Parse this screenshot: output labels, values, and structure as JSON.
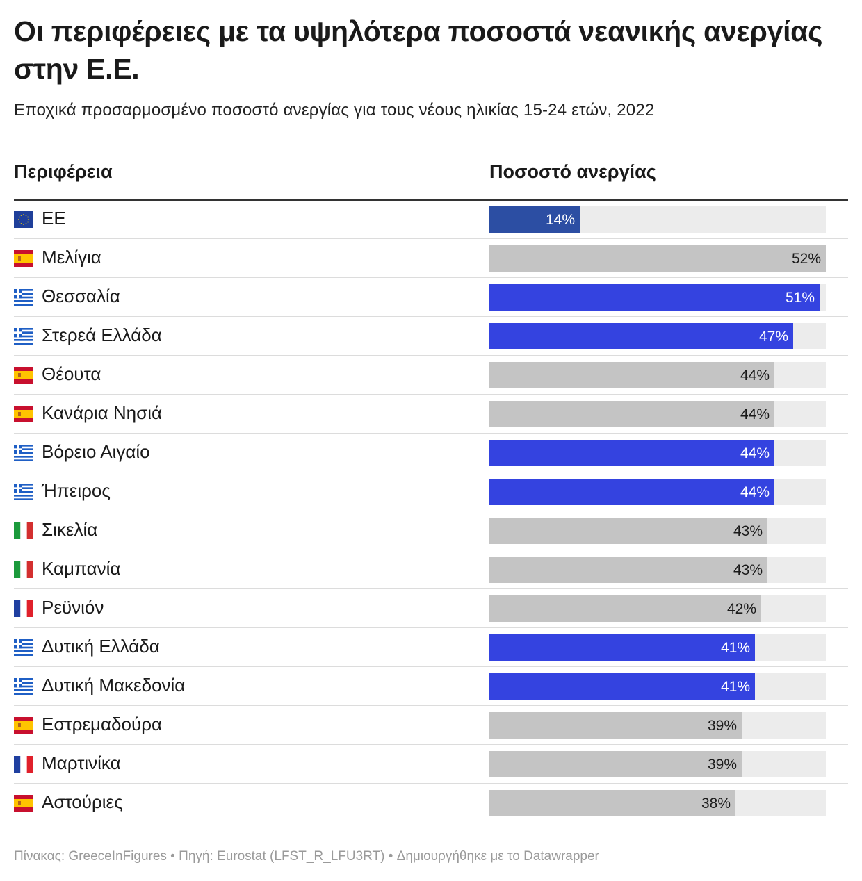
{
  "title": "Οι περιφέρειες με τα υψηλότερα ποσοστά νεανικής ανεργίας στην Ε.Ε.",
  "subtitle": "Εποχικά προσαρμοσμένο ποσοστό ανεργίας για τους νέους ηλικίας 15-24 ετών, 2022",
  "columns": {
    "region": "Περιφέρεια",
    "rate": "Ποσοστό ανεργίας"
  },
  "footer": "Πίνακας: GreeceInFigures • Πηγή: Eurostat (LFST_R_LFU3RT)  • Δημιουργήθηκε με το Datawrapper",
  "colors": {
    "eu": "#2c4ea3",
    "greece": "#3443e0",
    "other": "#c4c4c4",
    "track": "#ececec"
  },
  "chart_data": {
    "type": "bar",
    "orientation": "horizontal",
    "xlim": [
      0,
      52
    ],
    "categories": [
      "ΕΕ",
      "Μελίγια",
      "Θεσσαλία",
      "Στερεά Ελλάδα",
      "Θέουτα",
      "Κανάρια Νησιά",
      "Βόρειο Αιγαίο",
      "Ήπειρος",
      "Σικελία",
      "Καμπανία",
      "Ρεϋνιόν",
      "Δυτική Ελλάδα",
      "Δυτική Μακεδονία",
      "Εστρεμαδούρα",
      "Μαρτινίκα",
      "Αστούριες"
    ],
    "values": [
      14,
      52,
      51,
      47,
      44,
      44,
      44,
      44,
      43,
      43,
      42,
      41,
      41,
      39,
      39,
      38
    ],
    "labels": [
      "14%",
      "52%",
      "51%",
      "47%",
      "44%",
      "44%",
      "44%",
      "44%",
      "43%",
      "43%",
      "42%",
      "41%",
      "41%",
      "39%",
      "39%",
      "38%"
    ],
    "flags": [
      "eu-flag-icon",
      "spain-flag-icon",
      "greece-flag-icon",
      "greece-flag-icon",
      "spain-flag-icon",
      "spain-flag-icon",
      "greece-flag-icon",
      "greece-flag-icon",
      "italy-flag-icon",
      "italy-flag-icon",
      "france-flag-icon",
      "greece-flag-icon",
      "greece-flag-icon",
      "spain-flag-icon",
      "france-flag-icon",
      "spain-flag-icon"
    ]
  }
}
